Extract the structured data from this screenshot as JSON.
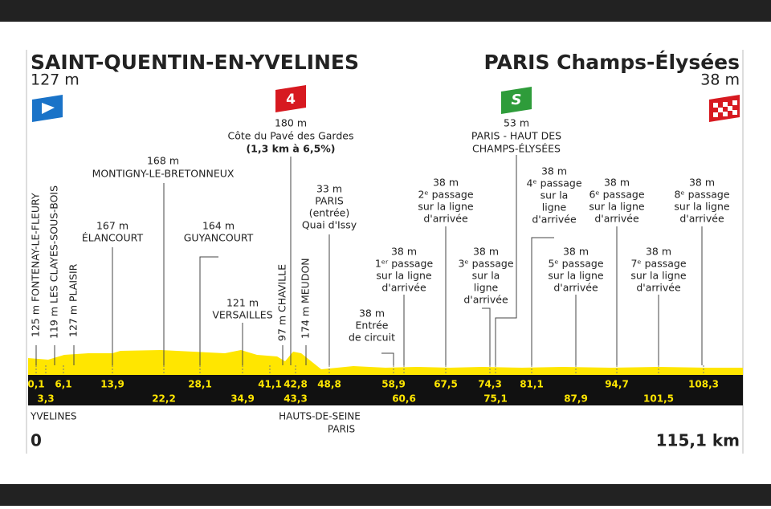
{
  "start": {
    "name": "SAINT-QUENTIN-EN-YVELINES",
    "altitude": "127 m"
  },
  "finish": {
    "name": "PARIS Champs-Élysées",
    "altitude": "38 m"
  },
  "climb_badge": "4",
  "sprint_badge": "S",
  "vertical_labels": [
    "125 m FONTENAY-LE-FLEURY",
    "119 m LES CLAYES-SOUS-BOIS",
    "127 m PLAISIR",
    "97 m CHAVILLE",
    "174 m MEUDON"
  ],
  "labels": [
    {
      "lines": [
        "167 m",
        "ÉLANCOURT"
      ]
    },
    {
      "lines": [
        "168 m",
        "MONTIGNY-LE-BRETONNEUX"
      ]
    },
    {
      "lines": [
        "164 m",
        "GUYANCOURT"
      ]
    },
    {
      "lines": [
        "121 m",
        "VERSAILLES"
      ]
    },
    {
      "lines": [
        "180 m",
        "Côte du Pavé des Gardes",
        "(1,3 km à 6,5%)"
      ]
    },
    {
      "lines": [
        "33 m",
        "PARIS",
        "(entrée)",
        "Quai d'Issy"
      ]
    },
    {
      "lines": [
        "38 m",
        "Entrée",
        "de circuit"
      ]
    },
    {
      "lines": [
        "38 m",
        "1ᵉʳ passage",
        "sur la ligne",
        "d'arrivée"
      ]
    },
    {
      "lines": [
        "38 m",
        "2ᵉ passage",
        "sur la ligne",
        "d'arrivée"
      ]
    },
    {
      "lines": [
        "38 m",
        "3ᵉ passage",
        "sur la",
        "ligne",
        "d'arrivée"
      ]
    },
    {
      "lines": [
        "53 m",
        "PARIS - HAUT DES",
        "CHAMPS-ÉLYSÉES"
      ]
    },
    {
      "lines": [
        "38 m",
        "4ᵉ passage",
        "sur la",
        "ligne",
        "d'arrivée"
      ]
    },
    {
      "lines": [
        "38 m",
        "5ᵉ passage",
        "sur la ligne",
        "d'arrivée"
      ]
    },
    {
      "lines": [
        "38 m",
        "6ᵉ passage",
        "sur la ligne",
        "d'arrivée"
      ]
    },
    {
      "lines": [
        "38 m",
        "7ᵉ passage",
        "sur la ligne",
        "d'arrivée"
      ]
    },
    {
      "lines": [
        "38 m",
        "8ᵉ passage",
        "sur la ligne",
        "d'arrivée"
      ]
    }
  ],
  "km_top": [
    "0,1",
    "6,1",
    "13,9",
    "28,1",
    "41,1",
    "42,8",
    "48,8",
    "58,9",
    "67,5",
    "74,3",
    "81,1",
    "94,7",
    "108,3"
  ],
  "km_bottom": [
    "3,3",
    "22,2",
    "34,9",
    "43,3",
    "60,6",
    "75,1",
    "87,9",
    "101,5"
  ],
  "regions": [
    "YVELINES",
    "HAUTS-DE-SEINE",
    "PARIS"
  ],
  "start_km": "0",
  "distance": "115,1 km"
}
